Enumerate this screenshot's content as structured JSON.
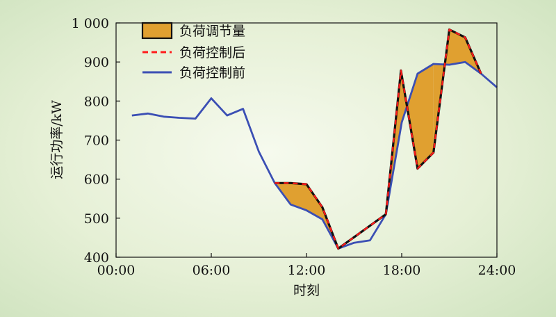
{
  "chart_data": {
    "type": "line",
    "xlabel": "时刻",
    "ylabel": "运行功率/kW",
    "xlim": [
      0,
      24
    ],
    "ylim": [
      400,
      1000
    ],
    "x_ticks": [
      {
        "value": 0,
        "label": "00:00"
      },
      {
        "value": 6,
        "label": "06:00"
      },
      {
        "value": 12,
        "label": "12:00"
      },
      {
        "value": 18,
        "label": "18:00"
      },
      {
        "value": 24,
        "label": "24:00"
      }
    ],
    "y_ticks": [
      {
        "value": 400,
        "label": "400"
      },
      {
        "value": 500,
        "label": "500"
      },
      {
        "value": 600,
        "label": "600"
      },
      {
        "value": 700,
        "label": "700"
      },
      {
        "value": 800,
        "label": "800"
      },
      {
        "value": 900,
        "label": "900"
      },
      {
        "value": 1000,
        "label": "1 000"
      }
    ],
    "grid": false,
    "legend_position": "top-left",
    "colors": {
      "before": "#3b4fb4",
      "after": "#ff1a1a",
      "fill": "#e0a030",
      "fill_edge": "#111111"
    },
    "series": [
      {
        "name": "负荷控制前",
        "style": "solid",
        "x": [
          1,
          2,
          3,
          4,
          5,
          6,
          7,
          8,
          9,
          10,
          11,
          12,
          13,
          14,
          15,
          16,
          17,
          18,
          19,
          20,
          21,
          22,
          23,
          24
        ],
        "values": [
          763,
          768,
          760,
          757,
          755,
          807,
          763,
          780,
          670,
          590,
          535,
          520,
          497,
          422,
          437,
          443,
          510,
          745,
          870,
          895,
          893,
          900,
          870,
          835
        ]
      },
      {
        "name": "负荷控制后",
        "style": "dashed",
        "x": [
          10,
          11,
          12,
          13,
          14,
          17,
          17.95,
          19,
          20,
          21,
          22,
          23
        ],
        "values": [
          590,
          590,
          587,
          528,
          422,
          510,
          878,
          627,
          668,
          983,
          963,
          870
        ]
      }
    ],
    "regulation_area": {
      "name": "负荷调节量",
      "regions": [
        [
          [
            10,
            590
          ],
          [
            11,
            590
          ],
          [
            12,
            587
          ],
          [
            13,
            528
          ],
          [
            14,
            422
          ],
          [
            13,
            497
          ],
          [
            12,
            520
          ],
          [
            11,
            535
          ]
        ],
        [
          [
            17,
            510
          ],
          [
            17.95,
            878
          ],
          [
            19,
            627
          ],
          [
            20,
            668
          ],
          [
            20,
            895
          ],
          [
            19,
            870
          ],
          [
            18,
            745
          ]
        ],
        [
          [
            20,
            668
          ],
          [
            21,
            983
          ],
          [
            22,
            963
          ],
          [
            23,
            870
          ],
          [
            22,
            900
          ],
          [
            21,
            893
          ],
          [
            20,
            895
          ]
        ]
      ]
    }
  }
}
